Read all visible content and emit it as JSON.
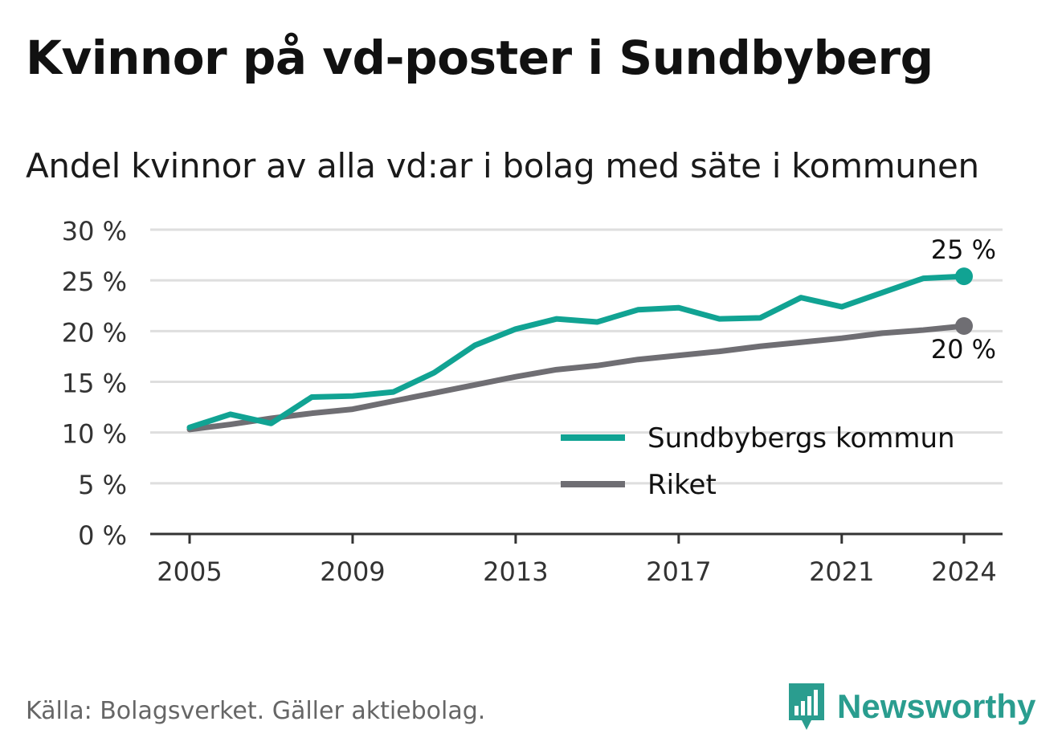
{
  "title": "Kvinnor på vd-poster i Sundbyberg",
  "subtitle": "Andel kvinnor av alla vd:ar i bolag med säte i kommunen",
  "source": "Källa: Bolagsverket. Gäller aktiebolag.",
  "brand": {
    "name": "Newsworthy",
    "color": "#2a9d8f"
  },
  "chart_data": {
    "type": "line",
    "x": [
      2005,
      2006,
      2007,
      2008,
      2009,
      2010,
      2011,
      2012,
      2013,
      2014,
      2015,
      2016,
      2017,
      2018,
      2019,
      2020,
      2021,
      2022,
      2023,
      2024
    ],
    "x_ticks": [
      2005,
      2009,
      2013,
      2017,
      2021,
      2024
    ],
    "y_ticks": [
      0,
      5,
      10,
      15,
      20,
      25,
      30
    ],
    "y_tick_suffix": " %",
    "ylim": [
      0,
      30
    ],
    "grid": true,
    "legend_position": "bottom-right",
    "series": [
      {
        "name": "Sundbybergs kommun",
        "color": "#11a393",
        "values": [
          10.5,
          11.8,
          10.9,
          13.5,
          13.6,
          14.0,
          15.9,
          18.6,
          20.2,
          21.2,
          20.9,
          22.1,
          22.3,
          21.2,
          21.3,
          23.3,
          22.4,
          23.8,
          25.2,
          25.4
        ],
        "end_label": "25 %"
      },
      {
        "name": "Riket",
        "color": "#6f6e73",
        "values": [
          10.3,
          10.8,
          11.4,
          11.9,
          12.3,
          13.1,
          13.9,
          14.7,
          15.5,
          16.2,
          16.6,
          17.2,
          17.6,
          18.0,
          18.5,
          18.9,
          19.3,
          19.8,
          20.1,
          20.5
        ],
        "end_label": "20 %"
      }
    ]
  }
}
